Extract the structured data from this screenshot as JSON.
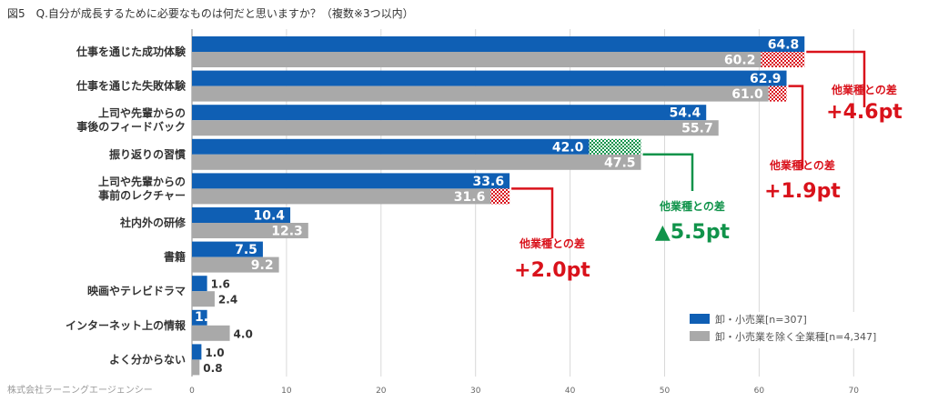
{
  "chart_data": {
    "type": "bar",
    "title": "図5　Q.自分が成長するために必要なものは何だと思いますか？（複数※3つ以内）",
    "source": "株式会社ラーニングエージェンシー",
    "categories": [
      "仕事を通じた成功体験",
      "仕事を通じた失敗体験",
      "上司や先輩からの\n事後のフィードバック",
      "振り返りの習慣",
      "上司や先輩からの\n事前のレクチャー",
      "社内外の研修",
      "書籍",
      "映画やテレビドラマ",
      "インターネット上の情報",
      "よく分からない"
    ],
    "series": [
      {
        "name": "卸・小売業[n=307]",
        "color": "#0f5fb4",
        "values": [
          64.8,
          62.9,
          54.4,
          42.0,
          33.6,
          10.4,
          7.5,
          1.6,
          1.6,
          1.0
        ]
      },
      {
        "name": "卸・小売業を除く全業種[n=4,347]",
        "color": "#a9a9a9",
        "values": [
          60.2,
          61.0,
          55.7,
          47.5,
          31.6,
          12.3,
          9.2,
          2.4,
          4.0,
          0.8
        ]
      }
    ],
    "xlim": [
      0,
      75
    ],
    "xticks": [
      0,
      10,
      20,
      30,
      40,
      50,
      60,
      70
    ],
    "grid": true,
    "legend_position": "bottom-right",
    "annotations": [
      {
        "category_index": 0,
        "label": "他業種との差",
        "value": "+4.6pt",
        "color": "#d9121b"
      },
      {
        "category_index": 1,
        "label": "他業種との差",
        "value": "+1.9pt",
        "color": "#d9121b"
      },
      {
        "category_index": 3,
        "label": "他業種との差",
        "value": "▲5.5pt",
        "color": "#10934a"
      },
      {
        "category_index": 4,
        "label": "他業種との差",
        "value": "+2.0pt",
        "color": "#d9121b"
      }
    ]
  }
}
